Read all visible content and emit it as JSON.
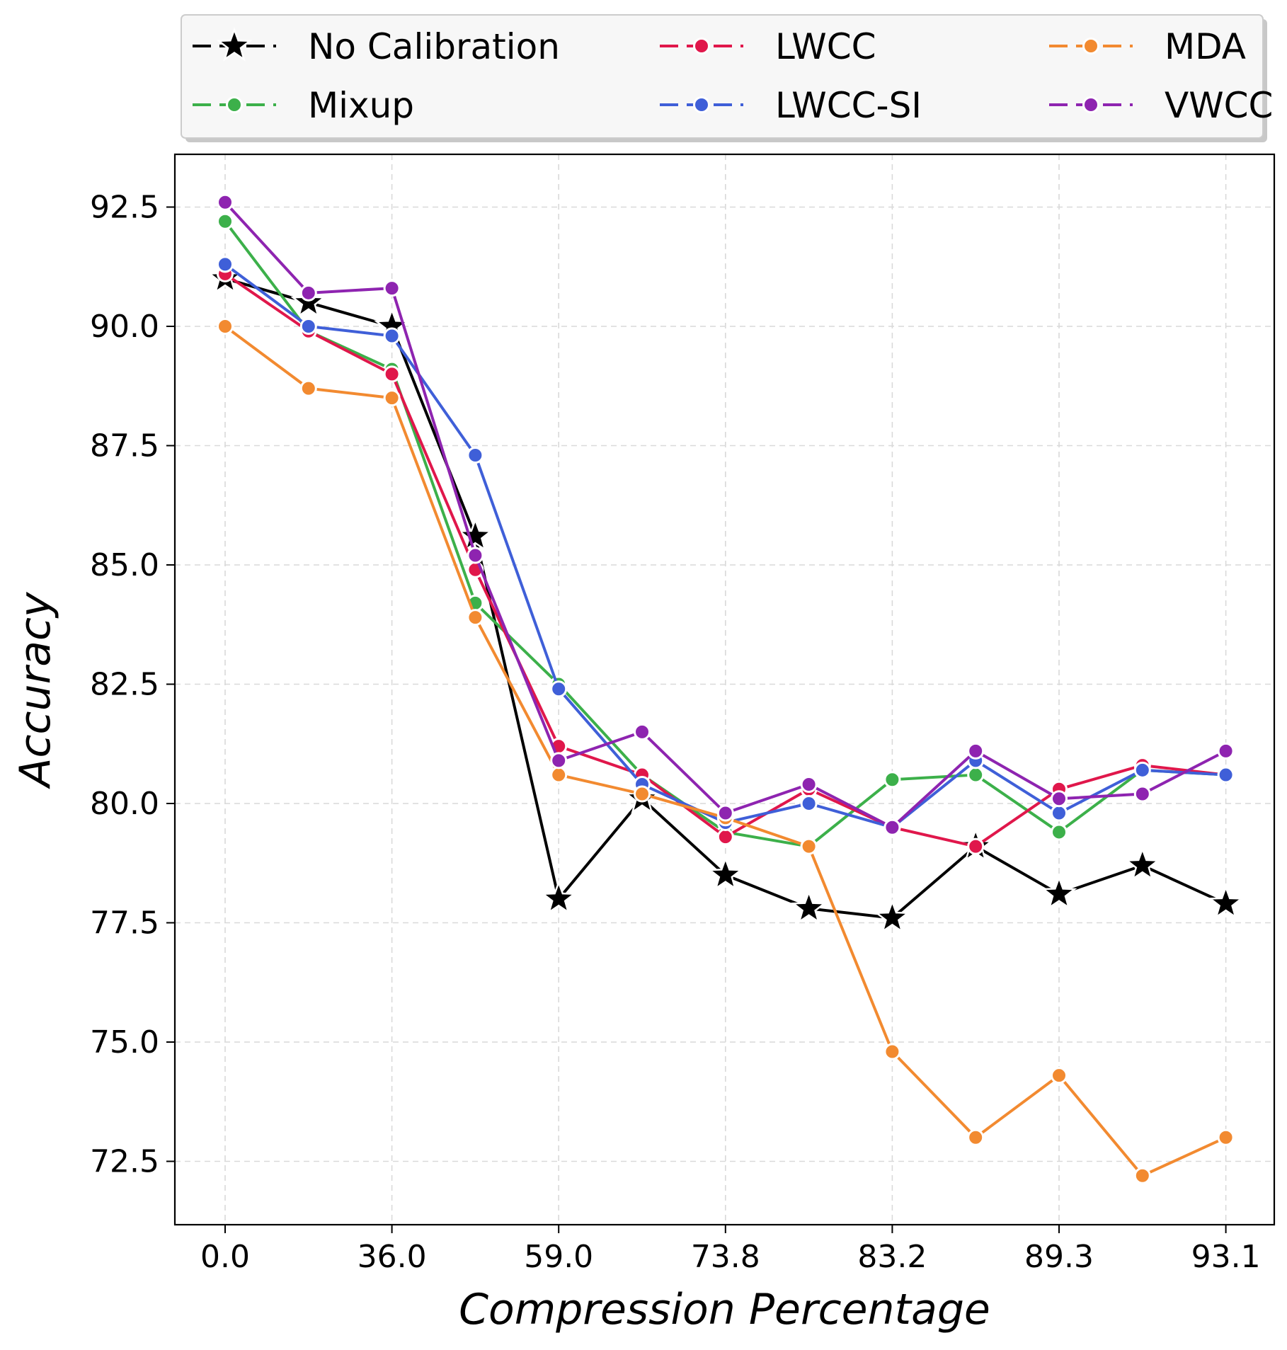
{
  "chart_data": {
    "type": "line",
    "xlabel": "Compression Percentage",
    "ylabel": "Accuracy",
    "x_tick_labels": [
      "0.0",
      "36.0",
      "59.0",
      "73.8",
      "83.2",
      "89.3",
      "93.1"
    ],
    "x_positions": [
      0,
      1,
      2,
      3,
      4,
      5,
      6,
      7,
      8,
      9,
      10,
      11,
      12
    ],
    "ylim": [
      71.3,
      93.6
    ],
    "y_ticks": [
      72.5,
      75.0,
      77.5,
      80.0,
      82.5,
      85.0,
      87.5,
      90.0,
      92.5
    ],
    "grid": true,
    "legend_position": "top, above plot",
    "series": [
      {
        "name": "No Calibration",
        "color": "#000000",
        "marker": "star",
        "values": [
          91.0,
          90.5,
          90.0,
          85.6,
          78.0,
          80.1,
          78.5,
          77.8,
          77.6,
          79.1,
          78.1,
          78.7,
          77.9
        ]
      },
      {
        "name": "Mixup",
        "color": "#3cb04a",
        "marker": "circle",
        "values": [
          92.2,
          89.9,
          89.1,
          84.2,
          82.5,
          80.6,
          79.4,
          79.1,
          80.5,
          80.6,
          79.4,
          80.7,
          80.6
        ]
      },
      {
        "name": "LWCC",
        "color": "#e0174b",
        "marker": "circle",
        "values": [
          91.1,
          89.9,
          89.0,
          84.9,
          81.2,
          80.6,
          79.3,
          80.3,
          79.5,
          79.1,
          80.3,
          80.8,
          80.6
        ]
      },
      {
        "name": "LWCC-SI",
        "color": "#3f5fd8",
        "marker": "circle",
        "values": [
          91.3,
          90.0,
          89.8,
          87.3,
          82.4,
          80.4,
          79.6,
          80.0,
          79.5,
          80.9,
          79.8,
          80.7,
          80.6
        ]
      },
      {
        "name": "MDA",
        "color": "#f28a30",
        "marker": "circle",
        "values": [
          90.0,
          88.7,
          88.5,
          83.9,
          80.6,
          80.2,
          79.7,
          79.1,
          74.8,
          73.0,
          74.3,
          72.2,
          73.0
        ]
      },
      {
        "name": "VWCC",
        "color": "#8e24b0",
        "marker": "circle",
        "values": [
          92.6,
          90.7,
          90.8,
          85.2,
          80.9,
          81.5,
          79.8,
          80.4,
          79.5,
          81.1,
          80.1,
          80.2,
          81.1
        ]
      }
    ]
  }
}
